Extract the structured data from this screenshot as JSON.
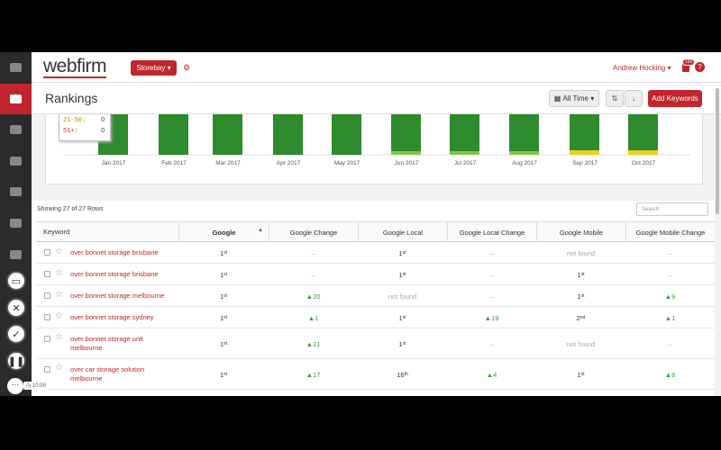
{
  "header": {
    "logo": "webfirm",
    "account": "Storebay",
    "user": "Andrew Hocking",
    "notifications": "150"
  },
  "toolbar": {
    "title": "Rankings",
    "range": "All Time",
    "button": "Add Keywords"
  },
  "chart": {
    "legend": [
      {
        "label": "21-50:",
        "value": 0
      },
      {
        "label": "51+:",
        "value": 0
      }
    ],
    "months": [
      "Jan 2017",
      "Feb 2017",
      "Mar 2017",
      "Apr 2017",
      "May 2017",
      "Jun 2017",
      "Jul 2017",
      "Aug 2017",
      "Sep 2017",
      "Oct 2017"
    ]
  },
  "table": {
    "summary": "Showing 27 of 27 Rows",
    "search": "Search",
    "columns": [
      "Keyword",
      "Google",
      "Google Change",
      "Google Local",
      "Google Local Change",
      "Google Mobile",
      "Google Mobile Change"
    ],
    "rows": [
      [
        "over bonnet storage brisbane",
        {
          "n": "1",
          "s": "st"
        },
        "–",
        {
          "n": "1",
          "s": "st"
        },
        "–",
        "not found",
        "–"
      ],
      [
        "over bonnet storage brisbane",
        {
          "n": "1",
          "s": "st"
        },
        "–",
        {
          "n": "1",
          "s": "st"
        },
        "–",
        {
          "n": "1",
          "s": "st"
        },
        "–"
      ],
      [
        "over bonnet storage melbourne",
        {
          "n": "1",
          "s": "st"
        },
        "▲20",
        "not found",
        "–",
        {
          "n": "1",
          "s": "st"
        },
        "▲9"
      ],
      [
        "over bonnet storage sydney",
        {
          "n": "1",
          "s": "st"
        },
        "▲1",
        {
          "n": "1",
          "s": "st"
        },
        "▲19",
        {
          "n": "2",
          "s": "nd"
        },
        "▲1"
      ],
      [
        "over bonnet storage unit melbourne",
        {
          "n": "1",
          "s": "st"
        },
        "▲21",
        {
          "n": "1",
          "s": "st"
        },
        "–",
        "not found",
        "–"
      ],
      [
        "over car storage solution melbourne",
        {
          "n": "1",
          "s": "st"
        },
        "▲17",
        {
          "n": "16",
          "s": "th"
        },
        "▲4",
        {
          "n": "1",
          "s": "st"
        },
        "▲6"
      ]
    ]
  },
  "recorder": {
    "time": "10:00"
  }
}
